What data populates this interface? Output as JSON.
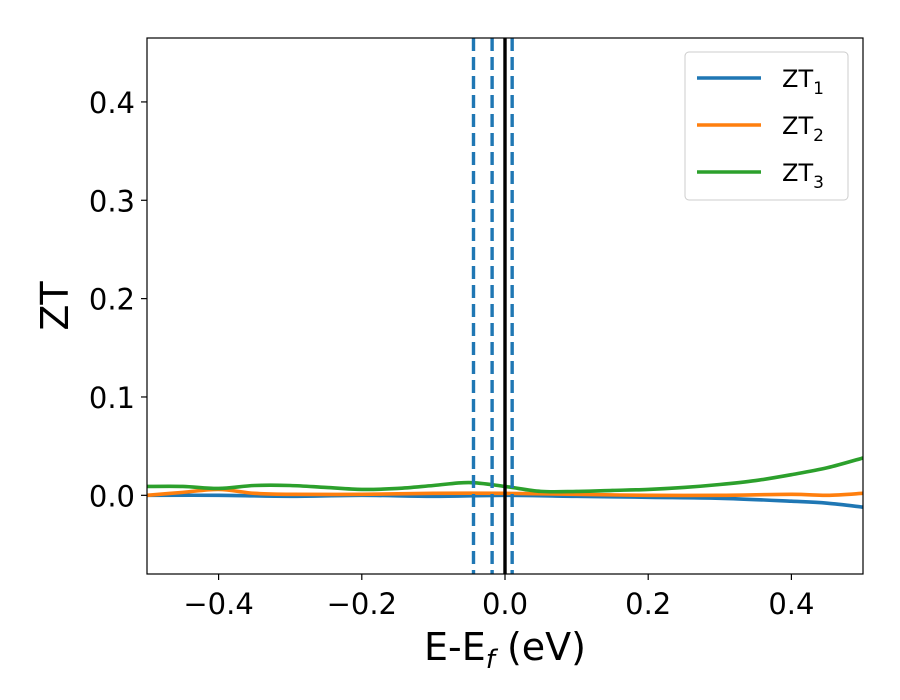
{
  "chart_data": {
    "type": "line",
    "xlabel": "E-E",
    "xlabel_sub": "f",
    "xlabel_unit": " (eV)",
    "ylabel": "ZT",
    "xlim": [
      -0.5,
      0.5
    ],
    "ylim": [
      -0.08,
      0.465
    ],
    "x_ticks": [
      -0.4,
      -0.2,
      0.0,
      0.2,
      0.4
    ],
    "x_tick_labels": [
      "−0.4",
      "−0.2",
      "0.0",
      "0.2",
      "0.4"
    ],
    "y_ticks": [
      0.0,
      0.1,
      0.2,
      0.3,
      0.4
    ],
    "y_tick_labels": [
      "0.0",
      "0.1",
      "0.2",
      "0.3",
      "0.4"
    ],
    "grid": false,
    "legend_position": "top-right",
    "series": [
      {
        "name": "ZT",
        "name_sub": "1",
        "color": "#1f77b4",
        "x": [
          -0.5,
          -0.4,
          -0.3,
          -0.2,
          -0.1,
          0.0,
          0.1,
          0.2,
          0.3,
          0.4,
          0.45,
          0.5
        ],
        "y": [
          0.0,
          0.0,
          -0.001,
          0.0,
          -0.001,
          0.0,
          -0.001,
          -0.002,
          -0.003,
          -0.006,
          -0.008,
          -0.012
        ]
      },
      {
        "name": "ZT",
        "name_sub": "2",
        "color": "#ff7f0e",
        "x": [
          -0.5,
          -0.45,
          -0.4,
          -0.35,
          -0.3,
          -0.2,
          -0.1,
          0.0,
          0.1,
          0.2,
          0.3,
          0.4,
          0.45,
          0.5
        ],
        "y": [
          0.0,
          0.003,
          0.006,
          0.002,
          0.001,
          0.001,
          0.002,
          0.002,
          0.001,
          0.0,
          0.0,
          0.001,
          0.0,
          0.002
        ]
      },
      {
        "name": "ZT",
        "name_sub": "3",
        "color": "#2ca02c",
        "x": [
          -0.5,
          -0.45,
          -0.4,
          -0.35,
          -0.3,
          -0.25,
          -0.2,
          -0.15,
          -0.1,
          -0.05,
          0.0,
          0.05,
          0.1,
          0.15,
          0.2,
          0.25,
          0.3,
          0.35,
          0.4,
          0.45,
          0.5
        ],
        "y": [
          0.009,
          0.009,
          0.007,
          0.01,
          0.01,
          0.008,
          0.006,
          0.007,
          0.01,
          0.013,
          0.009,
          0.004,
          0.004,
          0.005,
          0.006,
          0.008,
          0.011,
          0.015,
          0.021,
          0.028,
          0.038
        ]
      }
    ],
    "vlines": [
      {
        "x": -0.044,
        "style": "dashed",
        "color": "#1f77b4"
      },
      {
        "x": -0.018,
        "style": "dashed",
        "color": "#1f77b4"
      },
      {
        "x": 0.01,
        "style": "dashed",
        "color": "#1f77b4"
      },
      {
        "x": 0.0,
        "style": "solid",
        "color": "#000000"
      }
    ]
  }
}
